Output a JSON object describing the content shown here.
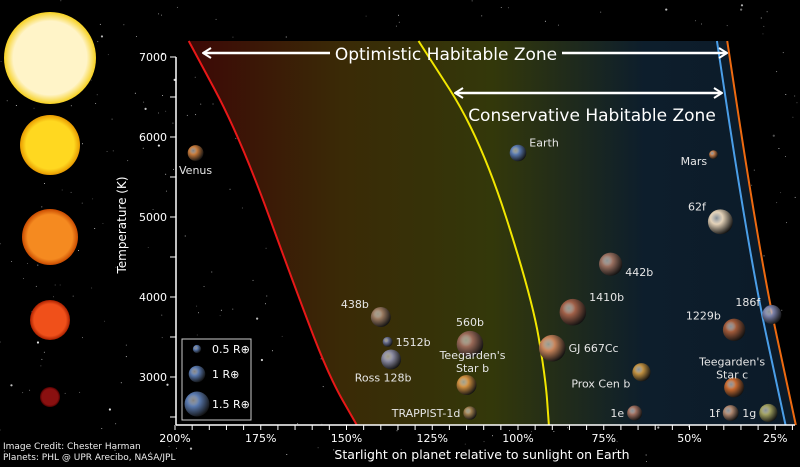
{
  "axes": {
    "ylabel": "Temperature (K)",
    "xlabel": "Starlight on planet relative to sunlight on Earth",
    "yticks": [
      7000,
      6000,
      5000,
      4000,
      3000
    ],
    "xticks": [
      "200%",
      "175%",
      "150%",
      "125%",
      "100%",
      "75%",
      "50%",
      "25%"
    ],
    "xtick_values": [
      200,
      175,
      150,
      125,
      100,
      75,
      50,
      25
    ],
    "xlim": [
      200,
      22
    ],
    "ylim": [
      2400,
      7200
    ],
    "x_reversed": true
  },
  "zones": {
    "optimistic_label": "Optimistic Habitable Zone",
    "conservative_label": "Conservative Habitable Zone",
    "boundaries": [
      {
        "name": "optimistic-inner",
        "color": "#e81818",
        "points": [
          [
            196,
            7200
          ],
          [
            181,
            6000
          ],
          [
            164,
            4000
          ],
          [
            155,
            3000
          ],
          [
            147,
            2400
          ]
        ]
      },
      {
        "name": "conservative-inner",
        "color": "#f2e600",
        "points": [
          [
            129,
            7200
          ],
          [
            111,
            6000
          ],
          [
            96,
            4000
          ],
          [
            92,
            3000
          ],
          [
            91,
            2400
          ]
        ]
      },
      {
        "name": "conservative-outer",
        "color": "#4a9ee8",
        "points": [
          [
            42,
            7200
          ],
          [
            36,
            5500
          ],
          [
            30,
            4000
          ],
          [
            25,
            3000
          ],
          [
            22,
            2400
          ]
        ]
      },
      {
        "name": "optimistic-outer",
        "color": "#ee6a10",
        "points": [
          [
            39,
            7200
          ],
          [
            33,
            5500
          ],
          [
            27,
            4000
          ],
          [
            22,
            3000
          ],
          [
            19,
            2400
          ]
        ]
      }
    ],
    "gradient_colors": [
      "#3c0806",
      "#3a2a06",
      "#33380a",
      "#0d1e2c",
      "#0c1a28"
    ]
  },
  "planets": [
    {
      "label": "Venus",
      "flux": 194,
      "temp": 5800,
      "radius_earth": 0.95,
      "color": "#c77a3a",
      "label_pos": "below"
    },
    {
      "label": "Earth",
      "flux": 100,
      "temp": 5800,
      "radius_earth": 1.0,
      "color": "#5a7ab0",
      "label_pos": "right-up"
    },
    {
      "label": "Mars",
      "flux": 43,
      "temp": 5780,
      "radius_earth": 0.53,
      "color": "#c07a48",
      "label_pos": "left-down"
    },
    {
      "label": "62f",
      "flux": 41,
      "temp": 4940,
      "radius_earth": 1.5,
      "color": "#e4d2b8",
      "label_pos": "left-up"
    },
    {
      "label": "442b",
      "flux": 73,
      "temp": 4410,
      "radius_earth": 1.4,
      "color": "#9a7060",
      "label_pos": "right-down"
    },
    {
      "label": "1410b",
      "flux": 84,
      "temp": 3810,
      "radius_earth": 1.6,
      "color": "#a06048",
      "label_pos": "right-up"
    },
    {
      "label": "GJ 667Cc",
      "flux": 90,
      "temp": 3360,
      "radius_earth": 1.6,
      "color": "#c8845a",
      "label_pos": "right"
    },
    {
      "label": "Prox Cen b",
      "flux": 64,
      "temp": 3060,
      "radius_earth": 1.1,
      "color": "#c09040",
      "label_pos": "left-down"
    },
    {
      "label": "1e",
      "flux": 66,
      "temp": 2550,
      "radius_earth": 0.9,
      "color": "#a07060",
      "label_pos": "left"
    },
    {
      "label": "1f",
      "flux": 38,
      "temp": 2550,
      "radius_earth": 0.95,
      "color": "#b08870",
      "label_pos": "left"
    },
    {
      "label": "1g",
      "flux": 27,
      "temp": 2550,
      "radius_earth": 1.1,
      "color": "#a0a060",
      "label_pos": "left"
    },
    {
      "label": "Teegarden's\nStar c",
      "flux": 37,
      "temp": 2870,
      "radius_earth": 1.2,
      "color": "#c86a30",
      "label_pos": "left-up"
    },
    {
      "label": "1229b",
      "flux": 37,
      "temp": 3590,
      "radius_earth": 1.35,
      "color": "#a05a3a",
      "label_pos": "left-up"
    },
    {
      "label": "186f",
      "flux": 26,
      "temp": 3780,
      "radius_earth": 1.15,
      "color": "#7a80a8",
      "label_pos": "left-up"
    },
    {
      "label": "438b",
      "flux": 140,
      "temp": 3750,
      "radius_earth": 1.2,
      "color": "#9a7a60",
      "label_pos": "left-up"
    },
    {
      "label": "1512b",
      "flux": 138,
      "temp": 3440,
      "radius_earth": 0.6,
      "color": "#6a7090",
      "label_pos": "right"
    },
    {
      "label": "Ross 128b",
      "flux": 137,
      "temp": 3220,
      "radius_earth": 1.2,
      "color": "#8a8aa0",
      "label_pos": "below-left"
    },
    {
      "label": "560b",
      "flux": 114,
      "temp": 3410,
      "radius_earth": 1.6,
      "color": "#9a6a58",
      "label_pos": "above"
    },
    {
      "label": "Teegarden's\nStar b",
      "flux": 115,
      "temp": 2900,
      "radius_earth": 1.2,
      "color": "#d09040",
      "label_pos": "above-right"
    },
    {
      "label": "TRAPPIST-1d",
      "flux": 114,
      "temp": 2550,
      "radius_earth": 0.8,
      "color": "#a08050",
      "label_pos": "left"
    }
  ],
  "legend": {
    "items": [
      {
        "label": "0.5 R⊕",
        "radius_earth": 0.5
      },
      {
        "label": "1 R⊕",
        "radius_earth": 1.0
      },
      {
        "label": "1.5 R⊕",
        "radius_earth": 1.5
      }
    ]
  },
  "stars": [
    {
      "color": "#fff4c8",
      "edge": "#f6d020"
    },
    {
      "color": "#ffd820",
      "edge": "#e89a00"
    },
    {
      "color": "#f58a20",
      "edge": "#c84a00"
    },
    {
      "color": "#f0501a",
      "edge": "#a82000"
    },
    {
      "color": "#8a1010",
      "edge": "#500000"
    }
  ],
  "credits": {
    "line1": "Image Credit: Chester Harman",
    "line2": "Planets:  PHL @ UPR Arecibo, NASA/JPL"
  }
}
